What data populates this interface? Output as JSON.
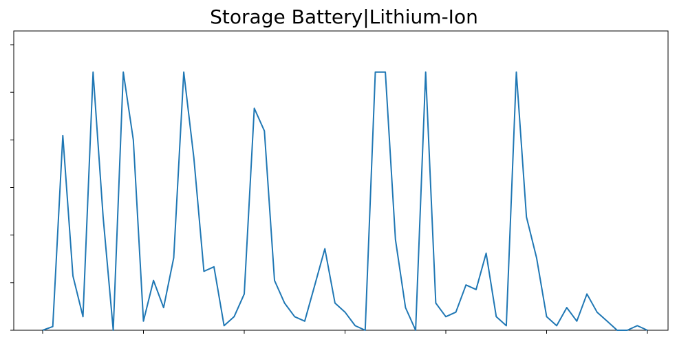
{
  "chart_data": {
    "type": "line",
    "title": "Storage Battery|Lithium-Ion",
    "xlabel": "",
    "ylabel": "",
    "x_ticks": 7,
    "y_ticks": 7,
    "ylim": [
      0,
      6
    ],
    "grid": false,
    "series_color": "#1f77b4",
    "x": [
      0,
      10,
      20,
      30,
      40,
      50,
      60,
      70,
      80,
      90,
      100,
      110,
      120,
      130,
      140,
      150,
      160,
      170,
      180,
      190,
      200,
      210,
      220,
      230,
      240,
      250,
      260,
      270,
      280,
      290,
      300,
      310,
      320,
      330,
      340,
      350,
      360,
      370,
      380,
      390,
      400,
      410,
      420,
      430,
      440,
      450,
      460,
      470,
      480,
      490,
      500,
      510,
      520,
      530,
      540,
      550,
      560,
      570,
      580,
      590,
      600
    ],
    "values": [
      0,
      0.08,
      4.3,
      1.2,
      0.3,
      5.7,
      2.5,
      0,
      5.7,
      4.2,
      0.2,
      1.1,
      0.5,
      1.6,
      5.7,
      3.8,
      1.3,
      1.4,
      0.1,
      0.3,
      0.8,
      4.9,
      4.4,
      1.1,
      0.6,
      0.3,
      0.2,
      1.0,
      1.8,
      0.6,
      0.4,
      0.1,
      0.0,
      5.7,
      5.7,
      2.0,
      0.5,
      0,
      5.7,
      0.6,
      0.3,
      0.4,
      1.0,
      0.9,
      1.7,
      0.3,
      0.1,
      5.7,
      2.5,
      1.6,
      0.3,
      0.1,
      0.5,
      0.2,
      0.8,
      0.4,
      0.2,
      0,
      0,
      0.1,
      0
    ]
  }
}
